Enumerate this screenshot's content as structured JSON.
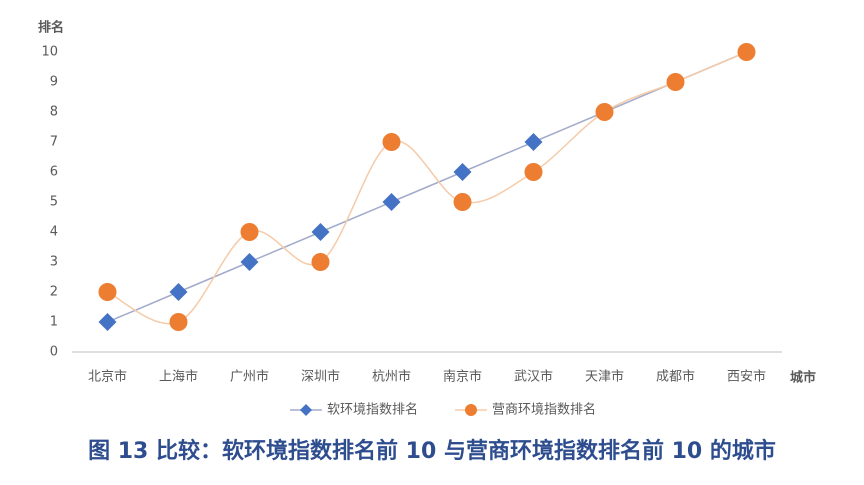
{
  "chart_data": {
    "type": "line",
    "ylabel": "排名",
    "xlabel": "城市",
    "categories": [
      "北京市",
      "上海市",
      "广州市",
      "深圳市",
      "杭州市",
      "南京市",
      "武汉市",
      "天津市",
      "成都市",
      "西安市"
    ],
    "series": [
      {
        "name": "软环境指数排名",
        "color": "#4472c4",
        "line_color": "#a3abcb",
        "marker": "diamond",
        "smooth": false,
        "values": [
          1,
          2,
          3,
          4,
          5,
          6,
          7,
          8,
          9,
          10
        ]
      },
      {
        "name": "营商环境指数排名",
        "color": "#ed7d31",
        "line_color": "#f5cba9",
        "marker": "circle",
        "smooth": true,
        "values": [
          2,
          1,
          4,
          3,
          7,
          5,
          6,
          8,
          9,
          10
        ]
      }
    ],
    "ylim": [
      0,
      10
    ],
    "yticks": [
      0,
      1,
      2,
      3,
      4,
      5,
      6,
      7,
      8,
      9,
      10
    ],
    "grid": false,
    "legend": "bottom",
    "caption": "图 13 比较：软环境指数排名前 10 与营商环境指数排名前 10 的城市"
  }
}
